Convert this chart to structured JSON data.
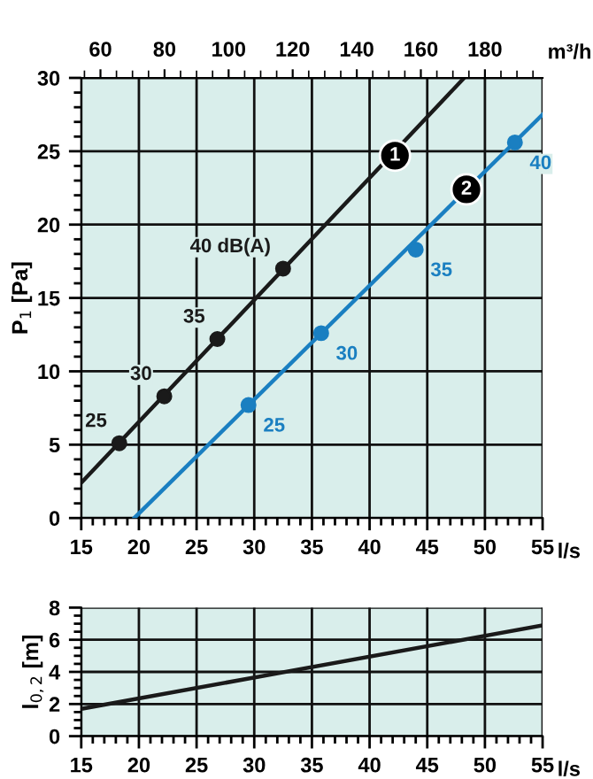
{
  "chart_data": [
    {
      "type": "line",
      "xlabel": "l/s",
      "ylabel": "P$_{1}$ [Pa]",
      "x2label": "m³/h",
      "xlim": [
        15,
        55
      ],
      "xticks": [
        15,
        20,
        25,
        30,
        35,
        40,
        45,
        50,
        55
      ],
      "x2lim": [
        54,
        198
      ],
      "x2ticks": [
        60,
        80,
        100,
        120,
        140,
        160,
        180
      ],
      "ylim": [
        0,
        30
      ],
      "yticks": [
        0,
        5,
        10,
        15,
        20,
        25,
        30
      ],
      "grid": true,
      "series": [
        {
          "type": "line",
          "color": "#1a1a1a",
          "x": [
            15,
            48.2
          ],
          "values": [
            2.4,
            30
          ]
        },
        {
          "type": "line",
          "color": "#1a7fc1",
          "x": [
            19.6,
            55
          ],
          "values": [
            0,
            27.5
          ]
        },
        {
          "type": "scatter",
          "color": "#1a1a1a",
          "marker": "circle",
          "x": [
            18.3,
            22.2,
            26.8,
            32.5
          ],
          "values": [
            5.1,
            8.3,
            12.2,
            17
          ]
        },
        {
          "type": "scatter",
          "color": "#1a7fc1",
          "marker": "circle",
          "x": [
            29.5,
            35.8,
            44,
            52.6
          ],
          "values": [
            7.7,
            12.6,
            18.3,
            25.6
          ]
        }
      ],
      "annotations": [
        {
          "text": "25",
          "x": 18.3,
          "y": 5.1
        },
        {
          "text": "30",
          "x": 22.2,
          "y": 8.3
        },
        {
          "text": "35",
          "x": 26.8,
          "y": 12.2
        },
        {
          "text": "40 dB(A)",
          "x": 32.5,
          "y": 17
        },
        {
          "text": "25",
          "x": 29.5,
          "y": 7.7
        },
        {
          "text": "30",
          "x": 35.8,
          "y": 12.6
        },
        {
          "text": "35",
          "x": 44,
          "y": 18.3
        },
        {
          "text": "40",
          "x": 52.6,
          "y": 25.6
        },
        {
          "text": "1",
          "x": 42.2,
          "y": 24.7
        },
        {
          "text": "2",
          "x": 48.4,
          "y": 22.4
        }
      ]
    },
    {
      "type": "line",
      "xlabel": "l/s",
      "ylabel": "l$_{0,2}$ [m]",
      "xlim": [
        15,
        55
      ],
      "xticks": [
        15,
        20,
        25,
        30,
        35,
        40,
        45,
        50,
        55
      ],
      "ylim": [
        0,
        8
      ],
      "yticks": [
        0,
        2,
        4,
        6,
        8
      ],
      "grid": true,
      "series": [
        {
          "type": "line",
          "color": "#1a1a1a",
          "x": [
            15,
            55
          ],
          "values": [
            1.7,
            6.9
          ]
        }
      ]
    }
  ]
}
